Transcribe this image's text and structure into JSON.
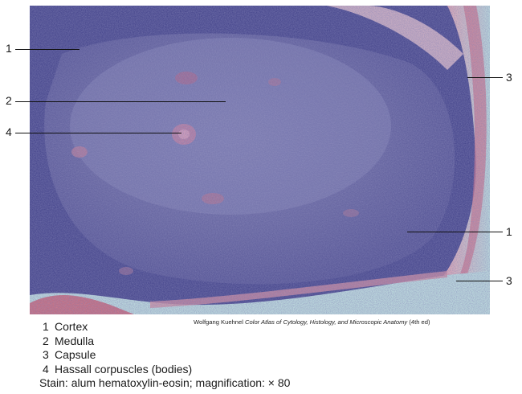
{
  "figure": {
    "callouts": [
      {
        "label": "1"
      },
      {
        "label": "2"
      },
      {
        "label": "4"
      },
      {
        "label": "3"
      },
      {
        "label": "1"
      },
      {
        "label": "3"
      }
    ],
    "credit": {
      "author": "Wolfgang Kuehnel",
      "book": "Color Atlas of Cytology, Histology, and Microscopic Anatomy",
      "edition": "(4th ed)"
    }
  },
  "legend": {
    "items": [
      {
        "num": "1",
        "text": "Cortex"
      },
      {
        "num": "2",
        "text": "Medulla"
      },
      {
        "num": "3",
        "text": "Capsule"
      },
      {
        "num": "4",
        "text": "Hassall corpuscles (bodies)"
      }
    ],
    "stain": "Stain: alum hematoxylin-eosin; magnification: × 80"
  },
  "colors": {
    "cortex": "#4a4a8f",
    "medulla": "#6a6aa2",
    "capsule": "#c98aa0",
    "vessel": "#b07b9b",
    "background_space": "#a8c9d4"
  }
}
